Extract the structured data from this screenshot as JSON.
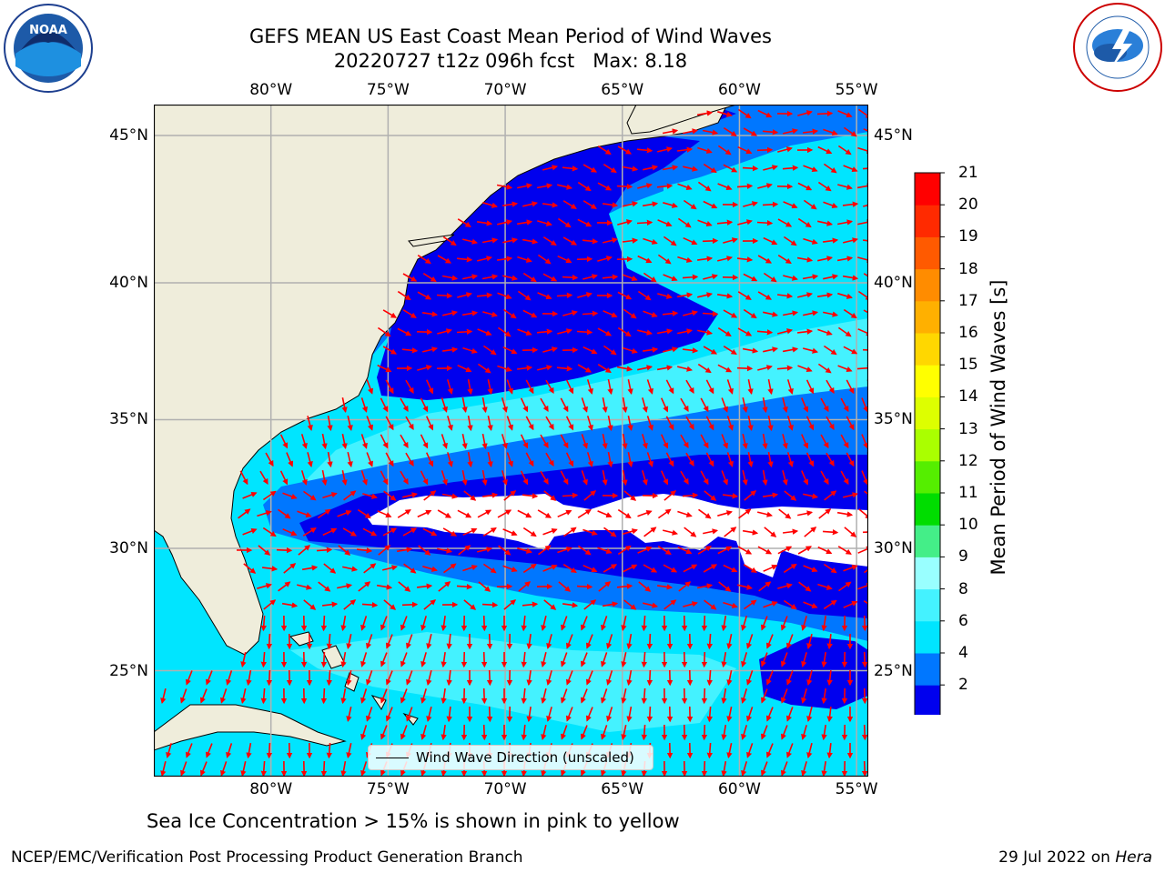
{
  "title": {
    "line1": "GEFS MEAN US East Coast Mean Period of Wind Waves",
    "line2": "20220727 t12z 096h fcst   Max: 8.18"
  },
  "map": {
    "lon_range": [
      -85,
      -54.5
    ],
    "lat_range": [
      20.5,
      46
    ],
    "lon_ticks": [
      "80°W",
      "75°W",
      "70°W",
      "65°W",
      "60°W",
      "55°W"
    ],
    "lat_ticks": [
      "45°N",
      "40°N",
      "35°N",
      "30°N",
      "25°N"
    ],
    "gridlines": true,
    "arrow_color": "#ff0000",
    "land_color": "#efeddb"
  },
  "colorbar": {
    "label": "Mean Period of Wind Waves [s]",
    "ticks": [
      "21",
      "20",
      "19",
      "18",
      "17",
      "16",
      "15",
      "14",
      "13",
      "12",
      "11",
      "10",
      "9",
      "8",
      "6",
      "4",
      "2"
    ],
    "colors": [
      "#0000ee",
      "#0077ff",
      "#00e5ff",
      "#44f2ff",
      "#99ffff",
      "#44ee88",
      "#00dd00",
      "#55ee00",
      "#aaff00",
      "#ddff00",
      "#ffff00",
      "#ffd700",
      "#ffb000",
      "#ff8c00",
      "#ff5a00",
      "#ff2a00",
      "#ff0000"
    ]
  },
  "legend": {
    "label": "Wind Wave Direction (unscaled)"
  },
  "sea_ice_note": "Sea Ice Concentration > 15% is shown in pink to yellow",
  "footer": {
    "left": "NCEP/EMC/Verification Post Processing Product Generation Branch",
    "right_prefix": "29 Jul 2022 on ",
    "right_machine": "Hera"
  },
  "logos": {
    "noaa": "NOAA",
    "nws": "NATIONAL WEATHER SERVICE"
  }
}
